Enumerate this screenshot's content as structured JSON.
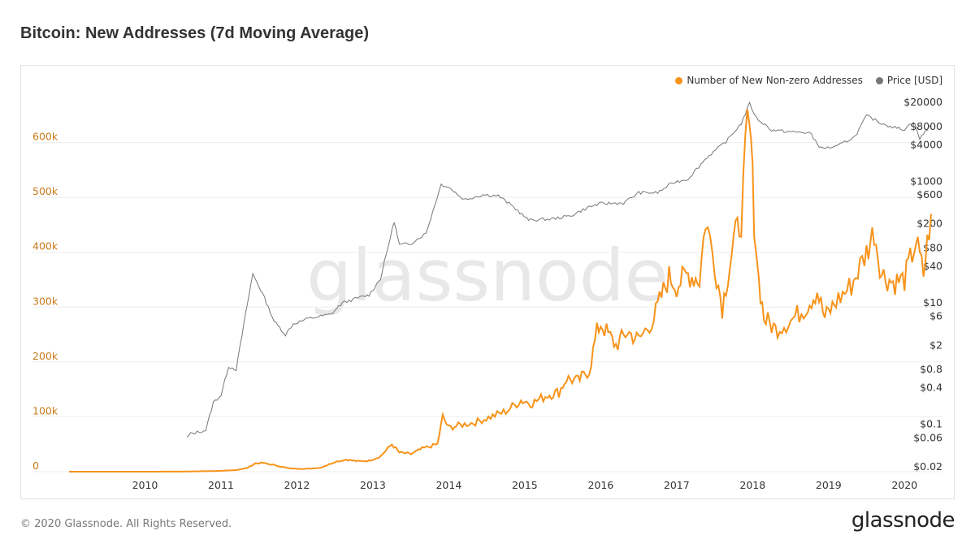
{
  "title": "Bitcoin: New Addresses (7d Moving Average)",
  "watermark": "glassnode",
  "footer": {
    "copyright": "© 2020 Glassnode. All Rights Reserved.",
    "logo": "glassnode"
  },
  "colors": {
    "addresses": "#f7931a",
    "price": "#777777",
    "left_axis_text": "#c97a1a",
    "right_axis_text": "#333333",
    "grid": "#eeeeee"
  },
  "chart_data": {
    "type": "line",
    "title": "Bitcoin: New Addresses (7d Moving Average)",
    "legend": {
      "placement": "top-right",
      "items": [
        "Number of New Non-zero Addresses",
        "Price [USD]"
      ]
    },
    "x_ticks": [
      "2010",
      "2011",
      "2012",
      "2013",
      "2014",
      "2015",
      "2016",
      "2017",
      "2018",
      "2019",
      "2020"
    ],
    "x_range": [
      2009.0,
      2020.5
    ],
    "left_axis": {
      "label": "",
      "ticks": [
        "0",
        "100k",
        "200k",
        "300k",
        "400k",
        "500k",
        "600k"
      ],
      "range": [
        0,
        700000
      ]
    },
    "right_axis": {
      "label": "",
      "scale": "log",
      "ticks": [
        "$0.02",
        "$0.06",
        "$0.1",
        "$0.4",
        "$0.8",
        "$2",
        "$6",
        "$10",
        "$40",
        "$80",
        "$200",
        "$600",
        "$1000",
        "$4000",
        "$8000",
        "$20000"
      ],
      "tick_values": [
        0.02,
        0.06,
        0.1,
        0.4,
        0.8,
        2,
        6,
        10,
        40,
        80,
        200,
        600,
        1000,
        4000,
        8000,
        20000
      ]
    },
    "grid": true,
    "series": [
      {
        "name": "Number of New Non-zero Addresses",
        "axis": "left",
        "points": [
          [
            2009.0,
            0
          ],
          [
            2010.0,
            0
          ],
          [
            2010.5,
            200
          ],
          [
            2011.0,
            1500
          ],
          [
            2011.2,
            3000
          ],
          [
            2011.35,
            7000
          ],
          [
            2011.45,
            15000
          ],
          [
            2011.55,
            16000
          ],
          [
            2011.7,
            12000
          ],
          [
            2011.9,
            6000
          ],
          [
            2012.1,
            5000
          ],
          [
            2012.3,
            7000
          ],
          [
            2012.4,
            12000
          ],
          [
            2012.5,
            18000
          ],
          [
            2012.65,
            22000
          ],
          [
            2012.8,
            19000
          ],
          [
            2012.95,
            20000
          ],
          [
            2013.1,
            28000
          ],
          [
            2013.25,
            50000
          ],
          [
            2013.35,
            35000
          ],
          [
            2013.5,
            32000
          ],
          [
            2013.65,
            42000
          ],
          [
            2013.85,
            50000
          ],
          [
            2013.92,
            100000
          ],
          [
            2014.0,
            80000
          ],
          [
            2014.15,
            85000
          ],
          [
            2014.35,
            90000
          ],
          [
            2014.55,
            100000
          ],
          [
            2014.75,
            110000
          ],
          [
            2014.95,
            130000
          ],
          [
            2015.1,
            125000
          ],
          [
            2015.3,
            140000
          ],
          [
            2015.45,
            145000
          ],
          [
            2015.55,
            170000
          ],
          [
            2015.7,
            165000
          ],
          [
            2015.85,
            185000
          ],
          [
            2015.95,
            255000
          ],
          [
            2016.0,
            270000
          ],
          [
            2016.1,
            250000
          ],
          [
            2016.2,
            230000
          ],
          [
            2016.35,
            255000
          ],
          [
            2016.5,
            240000
          ],
          [
            2016.7,
            280000
          ],
          [
            2016.8,
            320000
          ],
          [
            2016.9,
            355000
          ],
          [
            2017.0,
            340000
          ],
          [
            2017.15,
            360000
          ],
          [
            2017.3,
            350000
          ],
          [
            2017.38,
            460000
          ],
          [
            2017.5,
            380000
          ],
          [
            2017.6,
            300000
          ],
          [
            2017.75,
            420000
          ],
          [
            2017.85,
            460000
          ],
          [
            2017.93,
            630000
          ],
          [
            2017.98,
            600000
          ],
          [
            2018.02,
            460000
          ],
          [
            2018.08,
            350000
          ],
          [
            2018.15,
            280000
          ],
          [
            2018.3,
            260000
          ],
          [
            2018.5,
            275000
          ],
          [
            2018.7,
            300000
          ],
          [
            2018.85,
            330000
          ],
          [
            2018.95,
            280000
          ],
          [
            2019.1,
            310000
          ],
          [
            2019.3,
            340000
          ],
          [
            2019.5,
            400000
          ],
          [
            2019.6,
            440000
          ],
          [
            2019.7,
            360000
          ],
          [
            2019.85,
            345000
          ],
          [
            2020.0,
            350000
          ],
          [
            2020.15,
            420000
          ],
          [
            2020.25,
            360000
          ],
          [
            2020.35,
            470000
          ]
        ]
      },
      {
        "name": "Price [USD]",
        "axis": "right",
        "points": [
          [
            2010.55,
            0.06
          ],
          [
            2010.6,
            0.07
          ],
          [
            2010.8,
            0.08
          ],
          [
            2010.9,
            0.23
          ],
          [
            2011.0,
            0.3
          ],
          [
            2011.1,
            0.9
          ],
          [
            2011.2,
            0.8
          ],
          [
            2011.35,
            10
          ],
          [
            2011.42,
            30
          ],
          [
            2011.55,
            14
          ],
          [
            2011.7,
            5
          ],
          [
            2011.85,
            3
          ],
          [
            2011.95,
            4.5
          ],
          [
            2012.15,
            5.5
          ],
          [
            2012.45,
            6.5
          ],
          [
            2012.6,
            10
          ],
          [
            2012.8,
            12
          ],
          [
            2012.95,
            13.5
          ],
          [
            2013.1,
            25
          ],
          [
            2013.28,
            220
          ],
          [
            2013.35,
            90
          ],
          [
            2013.5,
            95
          ],
          [
            2013.7,
            140
          ],
          [
            2013.9,
            900
          ],
          [
            2014.0,
            800
          ],
          [
            2014.2,
            500
          ],
          [
            2014.45,
            600
          ],
          [
            2014.65,
            580
          ],
          [
            2014.85,
            380
          ],
          [
            2015.05,
            230
          ],
          [
            2015.35,
            240
          ],
          [
            2015.6,
            270
          ],
          [
            2015.85,
            380
          ],
          [
            2016.0,
            430
          ],
          [
            2016.3,
            440
          ],
          [
            2016.5,
            650
          ],
          [
            2016.75,
            650
          ],
          [
            2016.95,
            950
          ],
          [
            2017.15,
            1100
          ],
          [
            2017.4,
            2500
          ],
          [
            2017.65,
            4500
          ],
          [
            2017.85,
            9000
          ],
          [
            2017.96,
            19000
          ],
          [
            2018.05,
            11000
          ],
          [
            2018.25,
            7000
          ],
          [
            2018.5,
            6500
          ],
          [
            2018.75,
            6300
          ],
          [
            2018.9,
            3500
          ],
          [
            2019.1,
            3700
          ],
          [
            2019.35,
            5500
          ],
          [
            2019.5,
            12000
          ],
          [
            2019.7,
            9000
          ],
          [
            2019.9,
            7500
          ],
          [
            2020.0,
            7200
          ],
          [
            2020.12,
            9800
          ],
          [
            2020.2,
            5000
          ],
          [
            2020.35,
            8800
          ]
        ]
      }
    ]
  }
}
